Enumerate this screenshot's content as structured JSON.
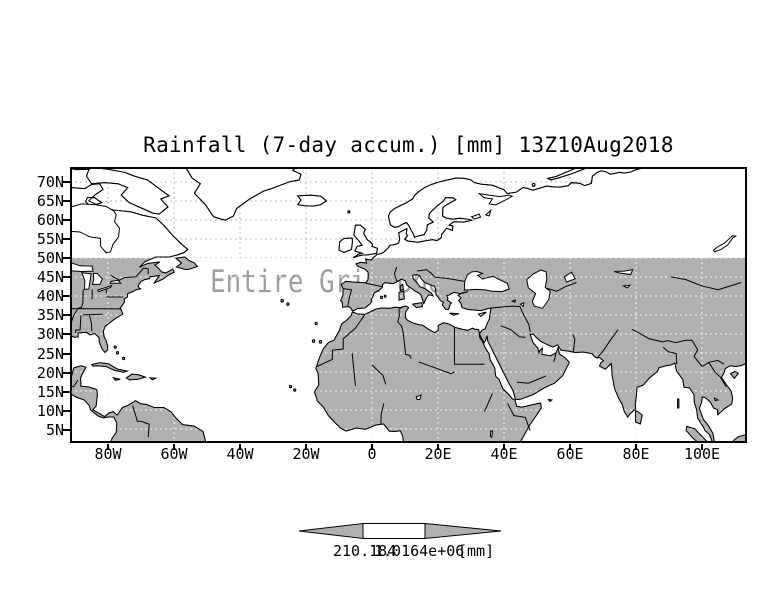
{
  "title": "Rainfall (7-day accum.) [mm] 13Z10Aug2018",
  "overlay_text": "Entire Grid Undefined",
  "axes": {
    "lat": [
      "70N",
      "65N",
      "60N",
      "55N",
      "50N",
      "45N",
      "40N",
      "35N",
      "30N",
      "25N",
      "20N",
      "15N",
      "10N",
      "5N"
    ],
    "lon": [
      "80W",
      "60W",
      "40W",
      "20W",
      "0",
      "20E",
      "40E",
      "60E",
      "80E",
      "100E"
    ]
  },
  "colorbar": {
    "left_label": "210.184",
    "right_label": "1.0164e+06",
    "unit": "[mm]"
  },
  "colors": {
    "land": "#b0b0b0",
    "grid": "#bcbcbc",
    "overlay_text": "#9e9e9e",
    "frame": "#000000",
    "background": "#ffffff"
  },
  "chart_data": {
    "type": "heatmap",
    "title": "Rainfall (7-day accum.) [mm] 13Z10Aug2018",
    "projection": "lat-lon map",
    "lat_ticks": [
      "70N",
      "65N",
      "60N",
      "55N",
      "50N",
      "45N",
      "40N",
      "35N",
      "30N",
      "25N",
      "20N",
      "15N",
      "10N",
      "5N"
    ],
    "lon_ticks": [
      "80W",
      "60W",
      "40W",
      "20W",
      "0",
      "20E",
      "40E",
      "60E",
      "80E",
      "100E"
    ],
    "grid": "dashed",
    "status": "Entire Grid Undefined",
    "values": null,
    "colorbar": {
      "labels": [
        "210.184",
        "1.0164e+06"
      ],
      "unit": "[mm]",
      "position": "bottom"
    },
    "land_shading": "gray below 50N, white above 50N"
  }
}
